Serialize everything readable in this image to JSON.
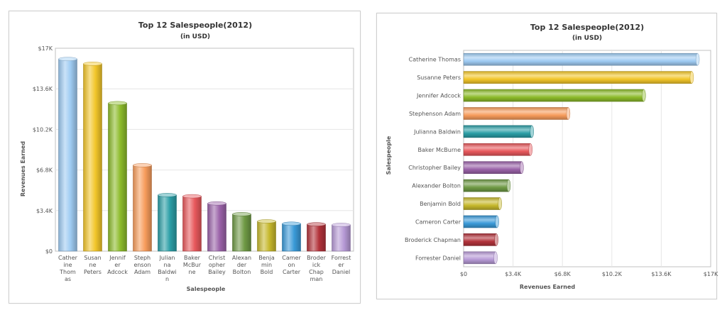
{
  "chart_data": [
    {
      "type": "bar",
      "orientation": "vertical",
      "title": "Top 12 Salespeople(2012)",
      "subtitle": "(in USD)",
      "xlabel": "Salespeople",
      "ylabel": "Revenues Earned",
      "ylim": [
        0,
        17000
      ],
      "y_ticks": [
        "$0",
        "$3.4K",
        "$6.8K",
        "$10.2K",
        "$13.6K",
        "$17K"
      ],
      "categories": [
        "Catherine Thomas",
        "Susanne Peters",
        "Jennifer Adcock",
        "Stephenson Adam",
        "Julianna Baldwin",
        "Baker McBurne",
        "Christopher Bailey",
        "Alexander Bolton",
        "Benjamin Bold",
        "Cameron Carter",
        "Broderick Chapman",
        "Forrester Daniel"
      ],
      "category_labels": [
        [
          "Cather",
          "ine",
          "Thom",
          "as"
        ],
        [
          "Susan",
          "ne",
          "Peters"
        ],
        [
          "Jennif",
          "er",
          "Adcock"
        ],
        [
          "Steph",
          "enson",
          "Adam"
        ],
        [
          "Julian",
          "na",
          "Baldwi",
          "n"
        ],
        [
          "Baker",
          "McBur",
          "ne"
        ],
        [
          "Christ",
          "opher",
          "Bailey"
        ],
        [
          "Alexan",
          "der",
          "Bolton"
        ],
        [
          "Benja",
          "min",
          "Bold"
        ],
        [
          "Camer",
          "on",
          "Carter"
        ],
        [
          "Broder",
          "ick",
          "Chap",
          "man"
        ],
        [
          "Forrest",
          "er",
          "Daniel"
        ]
      ],
      "values": [
        16100,
        15700,
        12400,
        7200,
        4700,
        4600,
        4000,
        3100,
        2500,
        2300,
        2250,
        2200
      ],
      "colors": [
        "#9ecbf2",
        "#f2c62a",
        "#8cbb2a",
        "#f79c5c",
        "#2b9ea6",
        "#e8585c",
        "#9a62a8",
        "#6f9a45",
        "#c6b82c",
        "#3a9ad8",
        "#b2323a",
        "#b79ad6"
      ],
      "grid": true
    },
    {
      "type": "bar",
      "orientation": "horizontal",
      "title": "Top 12 Salespeople(2012)",
      "subtitle": "(in USD)",
      "xlabel": "Revenues Earned",
      "ylabel": "Salespeople",
      "xlim": [
        0,
        17000
      ],
      "x_ticks": [
        "$0",
        "$3.4K",
        "$6.8K",
        "$10.2K",
        "$13.6K",
        "$17K"
      ],
      "categories": [
        "Catherine Thomas",
        "Susanne Peters",
        "Jennifer Adcock",
        "Stephenson Adam",
        "Julianna Baldwin",
        "Baker McBurne",
        "Christopher Bailey",
        "Alexander Bolton",
        "Benjamin Bold",
        "Cameron Carter",
        "Broderick Chapman",
        "Forrester Daniel"
      ],
      "values": [
        16100,
        15700,
        12400,
        7200,
        4700,
        4600,
        4000,
        3100,
        2500,
        2300,
        2250,
        2200
      ],
      "colors": [
        "#9ecbf2",
        "#f2c62a",
        "#8cbb2a",
        "#f79c5c",
        "#2b9ea6",
        "#e8585c",
        "#9a62a8",
        "#6f9a45",
        "#c6b82c",
        "#3a9ad8",
        "#b2323a",
        "#b79ad6"
      ],
      "grid": true
    }
  ]
}
